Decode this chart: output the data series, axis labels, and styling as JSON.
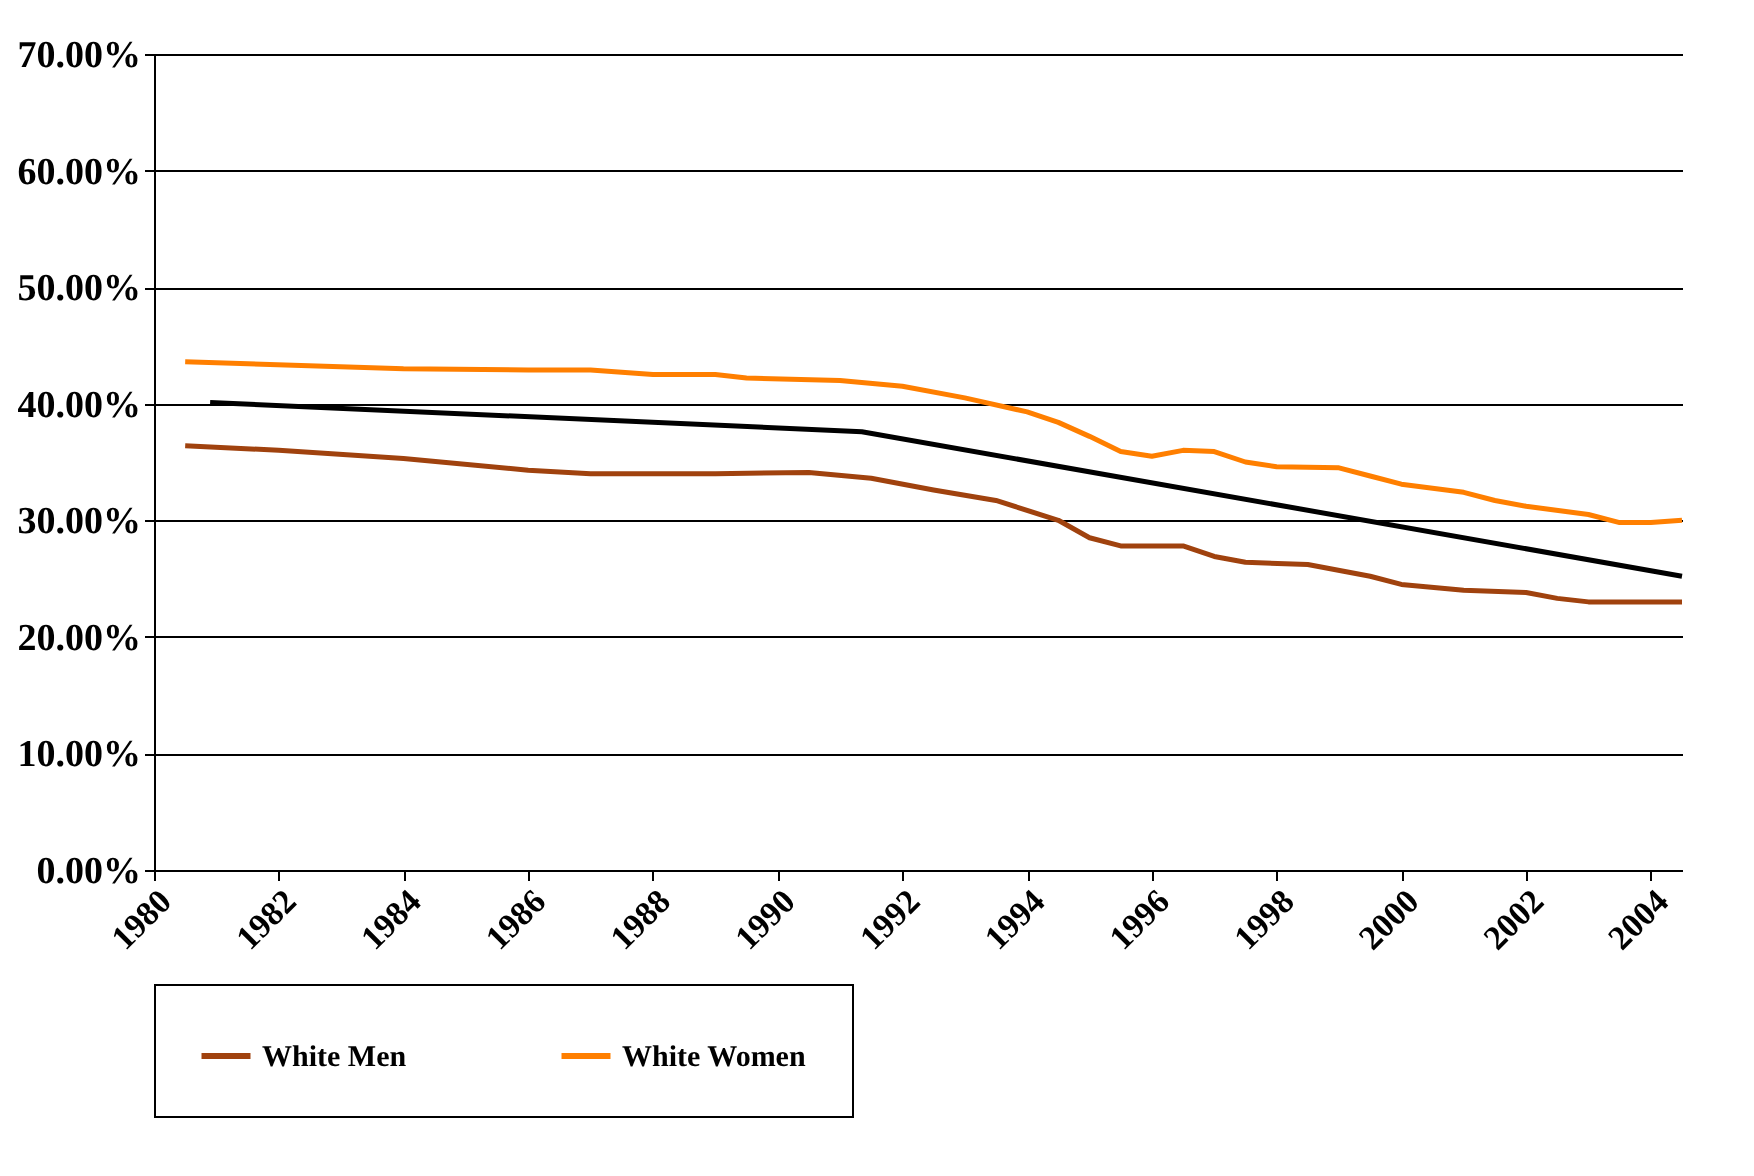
{
  "chart_data": {
    "type": "line",
    "xlim": [
      1980,
      2004.5
    ],
    "xticks": [
      1980,
      1982,
      1984,
      1986,
      1988,
      1990,
      1992,
      1994,
      1996,
      1998,
      2000,
      2002,
      2004
    ],
    "ylim": [
      0,
      70
    ],
    "yticks": [
      {
        "value": 0,
        "label": "0.00%"
      },
      {
        "value": 10,
        "label": "10.00%"
      },
      {
        "value": 20,
        "label": "20.00%"
      },
      {
        "value": 30,
        "label": "30.00%"
      },
      {
        "value": 40,
        "label": "40.00%"
      },
      {
        "value": 50,
        "label": "50.00%"
      },
      {
        "value": 60,
        "label": "60.00%"
      },
      {
        "value": 70,
        "label": "70.00%"
      }
    ],
    "grid": "y",
    "legend": "bottom",
    "series": [
      {
        "name": "White Men",
        "color": "#a0420e",
        "x": [
          1980.5,
          1982,
          1984,
          1986,
          1987,
          1989,
          1990.5,
          1991.5,
          1992.5,
          1993.5,
          1994.5,
          1995,
          1995.5,
          1996.5,
          1997,
          1997.5,
          1998.5,
          1999.5,
          2000,
          2001,
          2002,
          2002.5,
          2003,
          2004.5
        ],
        "values": [
          36.4,
          36.0,
          35.3,
          34.3,
          34.0,
          34.0,
          34.1,
          33.6,
          32.6,
          31.7,
          30.0,
          28.5,
          27.8,
          27.8,
          26.9,
          26.4,
          26.2,
          25.2,
          24.5,
          24.0,
          23.8,
          23.3,
          23.0,
          23.0
        ]
      },
      {
        "name": "White Women",
        "color": "#ff7f00",
        "x": [
          1980.5,
          1984,
          1986,
          1987,
          1988,
          1989,
          1989.5,
          1991,
          1992,
          1993,
          1994,
          1994.5,
          1995,
          1995.5,
          1996,
          1996.5,
          1997,
          1997.5,
          1998,
          1999,
          1999.5,
          2000,
          2001,
          2001.5,
          2002,
          2003,
          2003.5,
          2004,
          2004.5
        ],
        "values": [
          43.6,
          43.0,
          42.9,
          42.9,
          42.5,
          42.5,
          42.2,
          42.0,
          41.5,
          40.5,
          39.3,
          38.4,
          37.2,
          35.9,
          35.5,
          36.0,
          35.9,
          35.0,
          34.6,
          34.5,
          33.8,
          33.1,
          32.4,
          31.7,
          31.2,
          30.5,
          29.8,
          29.8,
          30.0
        ]
      },
      {
        "color": "#000000",
        "x": [
          1980.9,
          1991.35,
          2004.5
        ],
        "values": [
          40.1,
          37.6,
          25.2
        ]
      }
    ]
  }
}
